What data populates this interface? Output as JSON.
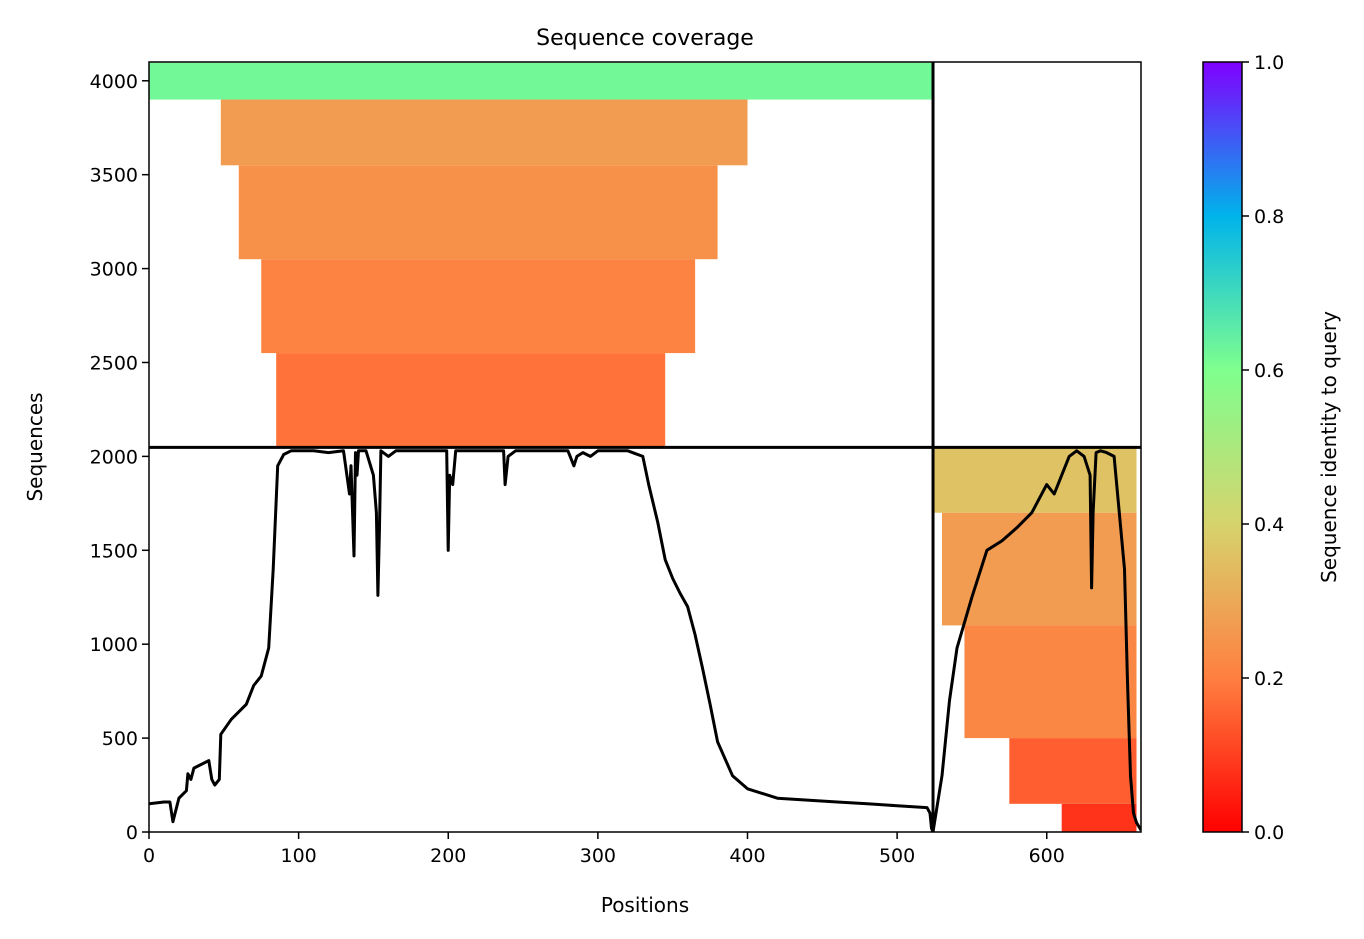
{
  "chart_data": {
    "type": "heatmap",
    "title": "Sequence coverage",
    "xlabel": "Positions",
    "ylabel": "Sequences",
    "xlim": [
      0,
      663
    ],
    "ylim": [
      0,
      4100
    ],
    "xticks": [
      0,
      100,
      200,
      300,
      400,
      500,
      600
    ],
    "yticks": [
      0,
      500,
      1000,
      1500,
      2000,
      2500,
      3000,
      3500,
      4000
    ],
    "grid": false,
    "colorbar": {
      "label": "Sequence identity to query",
      "range": [
        0.0,
        1.0
      ],
      "ticks": [
        "0.0",
        "0.2",
        "0.4",
        "0.6",
        "0.8",
        "1.0"
      ],
      "colormap": "rainbow_r",
      "stops": [
        "#ff0000",
        "#ff7f40",
        "#d6d36d",
        "#7fff8e",
        "#00b4eb",
        "#8000ff"
      ]
    },
    "blocks": [
      {
        "name": "block-1",
        "x_range": [
          0,
          524
        ],
        "seq_range": [
          2048,
          4096
        ],
        "regions": [
          {
            "x_range": [
              0,
              524
            ],
            "seq_range": [
              3900,
              4096
            ],
            "identity": 0.62
          },
          {
            "x_range": [
              48,
              400
            ],
            "seq_range": [
              3550,
              3900
            ],
            "identity": 0.27
          },
          {
            "x_range": [
              60,
              380
            ],
            "seq_range": [
              3050,
              3550
            ],
            "identity": 0.24
          },
          {
            "x_range": [
              75,
              365
            ],
            "seq_range": [
              2550,
              3050
            ],
            "identity": 0.21
          },
          {
            "x_range": [
              85,
              345
            ],
            "seq_range": [
              2048,
              2550
            ],
            "identity": 0.18
          }
        ]
      },
      {
        "name": "block-2",
        "x_range": [
          524,
          663
        ],
        "seq_range": [
          0,
          2048
        ],
        "regions": [
          {
            "x_range": [
              524,
              660
            ],
            "seq_range": [
              1700,
              2048
            ],
            "identity": 0.36
          },
          {
            "x_range": [
              530,
              660
            ],
            "seq_range": [
              1100,
              1700
            ],
            "identity": 0.27
          },
          {
            "x_range": [
              545,
              660
            ],
            "seq_range": [
              500,
              1100
            ],
            "identity": 0.22
          },
          {
            "x_range": [
              575,
              660
            ],
            "seq_range": [
              150,
              500
            ],
            "identity": 0.15
          },
          {
            "x_range": [
              610,
              660
            ],
            "seq_range": [
              0,
              150
            ],
            "identity": 0.08
          }
        ]
      }
    ],
    "block_boundaries": {
      "x": [
        524
      ],
      "seq": [
        2048
      ]
    },
    "coverage_line": {
      "color": "#000000",
      "x": [
        0,
        10,
        14,
        16,
        20,
        25,
        26,
        28,
        30,
        40,
        42,
        44,
        47,
        48,
        55,
        65,
        70,
        75,
        80,
        83,
        86,
        90,
        95,
        100,
        110,
        120,
        130,
        134,
        135,
        137,
        138,
        139,
        140,
        145,
        150,
        152,
        153,
        154,
        155,
        160,
        165,
        170,
        180,
        190,
        199,
        200,
        201,
        203,
        205,
        206,
        210,
        230,
        237,
        238,
        240,
        245,
        250,
        280,
        284,
        286,
        290,
        295,
        300,
        320,
        330,
        334,
        340,
        345,
        350,
        355,
        360,
        365,
        370,
        375,
        380,
        390,
        400,
        420,
        440,
        460,
        480,
        500,
        520,
        522,
        523,
        524,
        526,
        530,
        535,
        540,
        550,
        560,
        570,
        580,
        590,
        600,
        605,
        610,
        615,
        620,
        625,
        629,
        630,
        631,
        633,
        636,
        640,
        645,
        652,
        654,
        656,
        658,
        660,
        663
      ],
      "y": [
        150,
        160,
        160,
        55,
        180,
        220,
        310,
        280,
        340,
        380,
        280,
        250,
        280,
        520,
        600,
        680,
        780,
        830,
        980,
        1400,
        1950,
        2010,
        2030,
        2030,
        2030,
        2020,
        2030,
        1800,
        1950,
        1470,
        2020,
        1900,
        2030,
        2030,
        1900,
        1700,
        1260,
        1600,
        2030,
        2000,
        2030,
        2030,
        2030,
        2030,
        2030,
        1500,
        1900,
        1850,
        2030,
        2030,
        2030,
        2030,
        2030,
        1850,
        2000,
        2030,
        2030,
        2030,
        1950,
        2000,
        2020,
        2000,
        2030,
        2030,
        2000,
        1850,
        1650,
        1450,
        1350,
        1270,
        1200,
        1050,
        870,
        680,
        480,
        300,
        230,
        180,
        170,
        160,
        150,
        140,
        130,
        100,
        20,
        0,
        100,
        300,
        700,
        980,
        1250,
        1500,
        1550,
        1620,
        1700,
        1850,
        1800,
        1900,
        2000,
        2030,
        2000,
        1900,
        1300,
        1700,
        2020,
        2030,
        2020,
        2000,
        1400,
        800,
        300,
        100,
        50,
        10
      ]
    }
  }
}
